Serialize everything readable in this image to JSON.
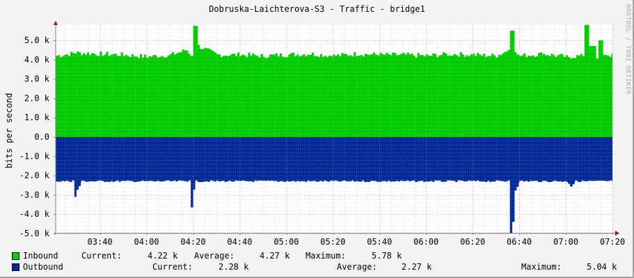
{
  "title": "Dobruska-Laichterova-S3 - Traffic - bridge1",
  "y_axis_label": "bits per second",
  "watermark": "RRDTOOL / TOBI OETIKER",
  "colors": {
    "inbound": "#00cc00",
    "outbound": "#002a97",
    "background": "#f3f3f3",
    "canvas": "#ffffff",
    "grid_minor": "#d0d0d0",
    "grid_major": "#e8a0a0",
    "axis": "#808080",
    "arrow": "#8b1a1a"
  },
  "legend": {
    "inbound": {
      "label": "Inbound",
      "current_label": "Current:",
      "current_value": "4.22 k",
      "average_label": "Average:",
      "average_value": "4.27 k",
      "maximum_label": "Maximum:",
      "maximum_value": "5.78 k"
    },
    "outbound": {
      "label": "Outbound",
      "current_label": "Current:",
      "current_value": "2.28 k",
      "average_label": "Average:",
      "average_value": "2.27 k",
      "maximum_label": "Maximum:",
      "maximum_value": "5.04 k"
    }
  },
  "chart_data": {
    "type": "area",
    "title": "Dobruska-Laichterova-S3 - Traffic - bridge1",
    "xlabel": "",
    "ylabel": "bits per second",
    "ylim": [
      -5000,
      5800
    ],
    "y_ticks": [
      "-5.0 k",
      "-4.0 k",
      "-3.0 k",
      "-2.0 k",
      "-1.0 k",
      "0.0",
      "1.0 k",
      "2.0 k",
      "3.0 k",
      "4.0 k",
      "5.0 k"
    ],
    "y_tick_values": [
      -5000,
      -4000,
      -3000,
      -2000,
      -1000,
      0,
      1000,
      2000,
      3000,
      4000,
      5000
    ],
    "x_ticks": [
      "03:40",
      "04:00",
      "04:20",
      "04:40",
      "05:00",
      "05:20",
      "05:40",
      "06:00",
      "06:20",
      "06:40",
      "07:00",
      "07:20"
    ],
    "x_range": [
      "03:21",
      "07:20"
    ],
    "grid": true,
    "legend_position": "bottom",
    "series": [
      {
        "name": "Inbound",
        "sign": "positive",
        "color": "#00cc00",
        "x": [
          "03:21",
          "03:30",
          "03:40",
          "03:50",
          "04:00",
          "04:10",
          "04:17",
          "04:19",
          "04:20",
          "04:22",
          "04:30",
          "04:40",
          "04:50",
          "05:00",
          "05:10",
          "05:20",
          "05:30",
          "05:40",
          "05:50",
          "06:00",
          "06:10",
          "06:20",
          "06:30",
          "06:35",
          "06:36",
          "06:38",
          "06:40",
          "06:50",
          "07:00",
          "07:07",
          "07:08",
          "07:10",
          "07:13",
          "07:14",
          "07:16",
          "07:20"
        ],
        "values": [
          4200,
          4350,
          4300,
          4250,
          4150,
          4250,
          4500,
          4200,
          5750,
          4700,
          4250,
          4250,
          4200,
          4250,
          4300,
          4200,
          4300,
          4250,
          4250,
          4200,
          4300,
          4250,
          4200,
          4500,
          5500,
          4500,
          4200,
          4300,
          4150,
          4200,
          5800,
          4700,
          4050,
          5000,
          4300,
          4200
        ]
      },
      {
        "name": "Outbound",
        "sign": "negative",
        "color": "#002a97",
        "x": [
          "03:21",
          "03:28",
          "03:29",
          "03:30",
          "03:32",
          "03:40",
          "04:00",
          "04:18",
          "04:19",
          "04:20",
          "04:21",
          "04:40",
          "05:00",
          "05:20",
          "05:40",
          "06:00",
          "06:20",
          "06:35",
          "06:36",
          "06:37",
          "06:38",
          "06:40",
          "06:50",
          "07:00",
          "07:02",
          "07:04",
          "07:10",
          "07:20"
        ],
        "values": [
          -2250,
          -2250,
          -3050,
          -2700,
          -2250,
          -2250,
          -2250,
          -2250,
          -3650,
          -2650,
          -2250,
          -2250,
          -2250,
          -2250,
          -2250,
          -2250,
          -2250,
          -2250,
          -5000,
          -4400,
          -2700,
          -2250,
          -2250,
          -2250,
          -2500,
          -2250,
          -2250,
          -2250
        ]
      }
    ],
    "summary": {
      "Inbound": {
        "current": "4.22 k",
        "average": "4.27 k",
        "maximum": "5.78 k"
      },
      "Outbound": {
        "current": "2.28 k",
        "average": "2.27 k",
        "maximum": "5.04 k"
      }
    }
  }
}
